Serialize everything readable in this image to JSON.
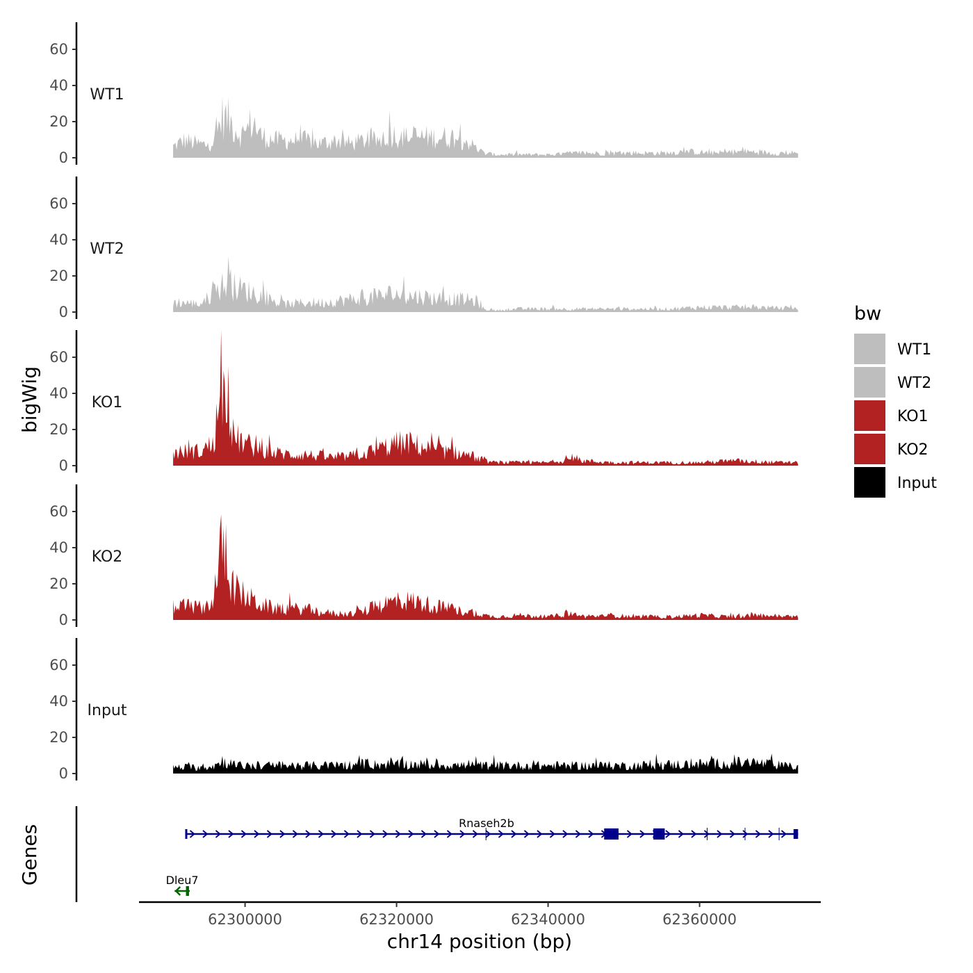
{
  "chart_data": {
    "type": "area",
    "panel_title": "bigWig",
    "genes_panel_title": "Genes",
    "xlabel": "chr14 position (bp)",
    "x_range": [
      62286000,
      62376000
    ],
    "data_range": [
      62290500,
      62373000
    ],
    "x_ticks": [
      62300000,
      62320000,
      62340000,
      62360000
    ],
    "x_tick_labels": [
      "62300000",
      "62320000",
      "62340000",
      "62360000"
    ],
    "y_range": [
      0,
      75
    ],
    "y_ticks": [
      0,
      20,
      40,
      60
    ],
    "y_tick_labels": [
      "0",
      "20",
      "40",
      "60"
    ],
    "legend": {
      "title": "bw",
      "entries": [
        {
          "label": "WT1",
          "color": "#BEBEBE"
        },
        {
          "label": "WT2",
          "color": "#BEBEBE"
        },
        {
          "label": "KO1",
          "color": "#B22222"
        },
        {
          "label": "KO2",
          "color": "#B22222"
        },
        {
          "label": "Input",
          "color": "#000000"
        }
      ]
    },
    "series": [
      {
        "name": "WT1",
        "color": "#BEBEBE",
        "profile": [
          [
            62290500,
            7
          ],
          [
            62292000,
            11
          ],
          [
            62293500,
            9
          ],
          [
            62295000,
            8
          ],
          [
            62296000,
            12
          ],
          [
            62297000,
            26
          ],
          [
            62297800,
            24
          ],
          [
            62298500,
            20
          ],
          [
            62299500,
            14
          ],
          [
            62300500,
            19
          ],
          [
            62301000,
            24
          ],
          [
            62302000,
            14
          ],
          [
            62304000,
            11
          ],
          [
            62306000,
            11
          ],
          [
            62308000,
            11
          ],
          [
            62310000,
            9
          ],
          [
            62312000,
            11
          ],
          [
            62314000,
            9
          ],
          [
            62316000,
            11
          ],
          [
            62318000,
            11
          ],
          [
            62319500,
            15
          ],
          [
            62320500,
            13
          ],
          [
            62322000,
            13
          ],
          [
            62324000,
            13
          ],
          [
            62326000,
            13
          ],
          [
            62328000,
            13
          ],
          [
            62329500,
            10
          ],
          [
            62330500,
            6
          ],
          [
            62331500,
            3
          ],
          [
            62333000,
            2
          ],
          [
            62336000,
            2
          ],
          [
            62340000,
            2
          ],
          [
            62344000,
            3
          ],
          [
            62348000,
            3
          ],
          [
            62352000,
            3
          ],
          [
            62356000,
            3
          ],
          [
            62358000,
            4
          ],
          [
            62362000,
            3
          ],
          [
            62366000,
            4
          ],
          [
            62370000,
            3
          ],
          [
            62373000,
            3
          ]
        ]
      },
      {
        "name": "WT2",
        "color": "#BEBEBE",
        "profile": [
          [
            62290500,
            6
          ],
          [
            62292000,
            6
          ],
          [
            62294000,
            5
          ],
          [
            62295500,
            10
          ],
          [
            62296500,
            15
          ],
          [
            62297500,
            18
          ],
          [
            62298500,
            16
          ],
          [
            62300000,
            14
          ],
          [
            62302000,
            11
          ],
          [
            62303500,
            7
          ],
          [
            62305000,
            5
          ],
          [
            62306000,
            5
          ],
          [
            62308000,
            6
          ],
          [
            62310000,
            6
          ],
          [
            62312000,
            7
          ],
          [
            62314000,
            8
          ],
          [
            62316000,
            9
          ],
          [
            62318000,
            10
          ],
          [
            62319500,
            12
          ],
          [
            62321000,
            10
          ],
          [
            62323000,
            10
          ],
          [
            62325000,
            9
          ],
          [
            62327000,
            8
          ],
          [
            62329000,
            8
          ],
          [
            62330500,
            7
          ],
          [
            62331500,
            2
          ],
          [
            62333000,
            1
          ],
          [
            62336000,
            2
          ],
          [
            62340000,
            2
          ],
          [
            62344000,
            2
          ],
          [
            62348000,
            2
          ],
          [
            62352000,
            2
          ],
          [
            62356000,
            2
          ],
          [
            62360000,
            3
          ],
          [
            62364000,
            3
          ],
          [
            62368000,
            3
          ],
          [
            62373000,
            2
          ]
        ]
      },
      {
        "name": "KO1",
        "color": "#B22222",
        "profile": [
          [
            62290500,
            8
          ],
          [
            62292000,
            9
          ],
          [
            62294000,
            9
          ],
          [
            62295500,
            13
          ],
          [
            62296500,
            25
          ],
          [
            62297000,
            46
          ],
          [
            62297500,
            40
          ],
          [
            62298500,
            18
          ],
          [
            62300000,
            14
          ],
          [
            62302000,
            10
          ],
          [
            62304000,
            8
          ],
          [
            62306000,
            7
          ],
          [
            62308000,
            7
          ],
          [
            62310000,
            6
          ],
          [
            62312000,
            5
          ],
          [
            62314000,
            6
          ],
          [
            62316000,
            8
          ],
          [
            62318000,
            11
          ],
          [
            62320000,
            14
          ],
          [
            62322000,
            14
          ],
          [
            62324000,
            11
          ],
          [
            62326000,
            9
          ],
          [
            62328000,
            8
          ],
          [
            62330000,
            6
          ],
          [
            62331500,
            3
          ],
          [
            62333000,
            2
          ],
          [
            62336000,
            2
          ],
          [
            62340000,
            2
          ],
          [
            62343000,
            4
          ],
          [
            62345000,
            3
          ],
          [
            62348000,
            2
          ],
          [
            62352000,
            2
          ],
          [
            62356000,
            2
          ],
          [
            62360000,
            2
          ],
          [
            62364000,
            3
          ],
          [
            62366000,
            3
          ],
          [
            62370000,
            2
          ],
          [
            62373000,
            2
          ]
        ]
      },
      {
        "name": "KO2",
        "color": "#B22222",
        "profile": [
          [
            62290500,
            8
          ],
          [
            62292000,
            9
          ],
          [
            62294000,
            8
          ],
          [
            62295500,
            10
          ],
          [
            62296500,
            30
          ],
          [
            62297000,
            50
          ],
          [
            62297500,
            36
          ],
          [
            62298500,
            20
          ],
          [
            62300000,
            15
          ],
          [
            62302000,
            10
          ],
          [
            62304000,
            7
          ],
          [
            62306000,
            7
          ],
          [
            62308000,
            7
          ],
          [
            62310000,
            5
          ],
          [
            62312000,
            4
          ],
          [
            62314000,
            4
          ],
          [
            62316000,
            6
          ],
          [
            62318000,
            10
          ],
          [
            62320000,
            12
          ],
          [
            62322000,
            12
          ],
          [
            62324000,
            10
          ],
          [
            62326000,
            8
          ],
          [
            62328000,
            6
          ],
          [
            62330000,
            5
          ],
          [
            62331500,
            3
          ],
          [
            62333000,
            2
          ],
          [
            62336000,
            3
          ],
          [
            62340000,
            2
          ],
          [
            62343000,
            4
          ],
          [
            62345000,
            2
          ],
          [
            62348000,
            3
          ],
          [
            62352000,
            2
          ],
          [
            62356000,
            2
          ],
          [
            62360000,
            3
          ],
          [
            62364000,
            2
          ],
          [
            62368000,
            3
          ],
          [
            62373000,
            2
          ]
        ]
      },
      {
        "name": "Input",
        "color": "#000000",
        "profile": [
          [
            62290500,
            4
          ],
          [
            62294000,
            4
          ],
          [
            62296000,
            5
          ],
          [
            62297000,
            8
          ],
          [
            62299000,
            5
          ],
          [
            62305000,
            5
          ],
          [
            62310000,
            5
          ],
          [
            62320000,
            6
          ],
          [
            62330000,
            5
          ],
          [
            62340000,
            5
          ],
          [
            62350000,
            5
          ],
          [
            62360000,
            6
          ],
          [
            62367000,
            7
          ],
          [
            62373000,
            4
          ]
        ]
      }
    ],
    "genes": [
      {
        "name": "Rnaseh2b",
        "strand": "+",
        "start": 62292100,
        "end": 62373000,
        "color": "#00008B",
        "exons": [
          [
            62292100,
            62292200
          ],
          [
            62347400,
            62349300
          ],
          [
            62353900,
            62355400
          ],
          [
            62372400,
            62373000
          ]
        ],
        "introns_marks": [
          62331800,
          62361000,
          62366000,
          62370500
        ]
      },
      {
        "name": "Dleu7",
        "strand": "-",
        "start": 62290700,
        "end": 62292700,
        "color": "#006400",
        "exons": [
          [
            62292200,
            62292600
          ]
        ]
      }
    ]
  }
}
